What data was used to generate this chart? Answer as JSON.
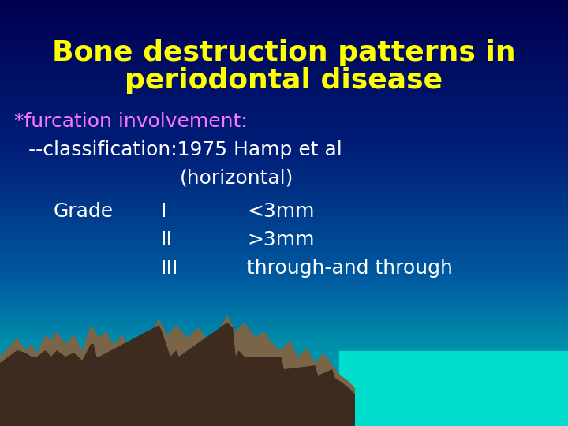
{
  "title_line1": "Bone destruction patterns in",
  "title_line2": "periodontal disease",
  "title_color": "#FFFF00",
  "title_fontsize": 26,
  "title_bold": true,
  "line1": "*furcation involvement:",
  "line1_color": "#FF77FF",
  "line1_fontsize": 18,
  "line2": "--classification:1975 Hamp et al",
  "line2_color": "#FFFFFF",
  "line2_fontsize": 18,
  "line3_text": "(horizontal)",
  "line3_color": "#FFFFFF",
  "line3_fontsize": 18,
  "grade_label": "Grade",
  "grade_color": "#FFFFFF",
  "grade_fontsize": 18,
  "rows": [
    {
      "roman": "I",
      "desc": "<3mm"
    },
    {
      "roman": "II",
      "desc": ">3mm"
    },
    {
      "roman": "III",
      "desc": "through-and through"
    }
  ],
  "row_color": "#FFFFFF",
  "row_fontsize": 18,
  "mountain_color": "#7A6548",
  "mountain_shadow": "#3D2B1F",
  "water_color": "#00DDCC",
  "gradient_stops": [
    [
      0.0,
      [
        0,
        0,
        80
      ]
    ],
    [
      0.35,
      [
        0,
        30,
        120
      ]
    ],
    [
      0.65,
      [
        0,
        90,
        160
      ]
    ],
    [
      0.8,
      [
        0,
        140,
        170
      ]
    ],
    [
      1.0,
      [
        0,
        180,
        180
      ]
    ]
  ]
}
